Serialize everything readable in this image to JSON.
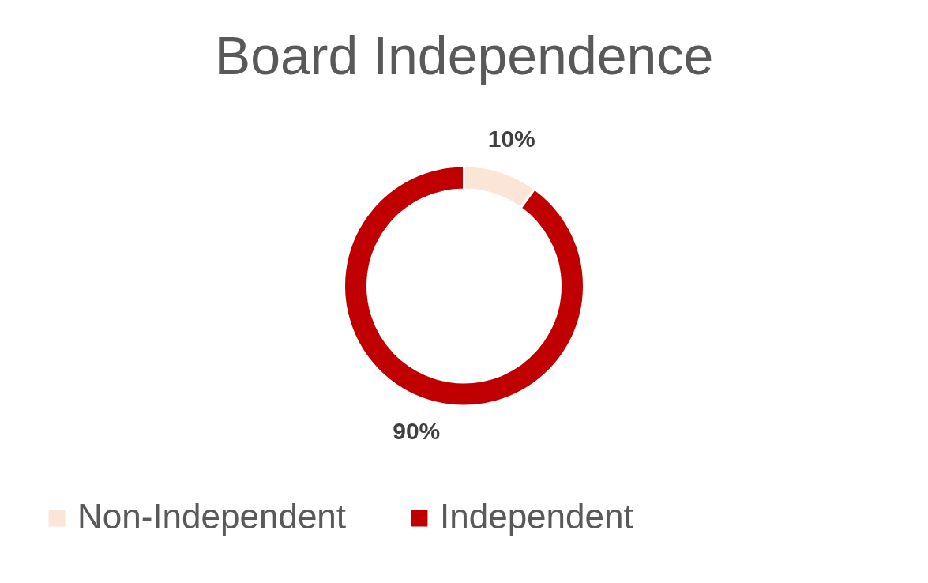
{
  "chart_data": {
    "type": "donut",
    "title": "Board Independence",
    "categories": [
      "Non-Independent",
      "Independent"
    ],
    "values": [
      10,
      90
    ],
    "colors": [
      "#fbe5d6",
      "#c00000"
    ],
    "value_labels": [
      "10%",
      "90%"
    ],
    "legend": "bottom"
  }
}
